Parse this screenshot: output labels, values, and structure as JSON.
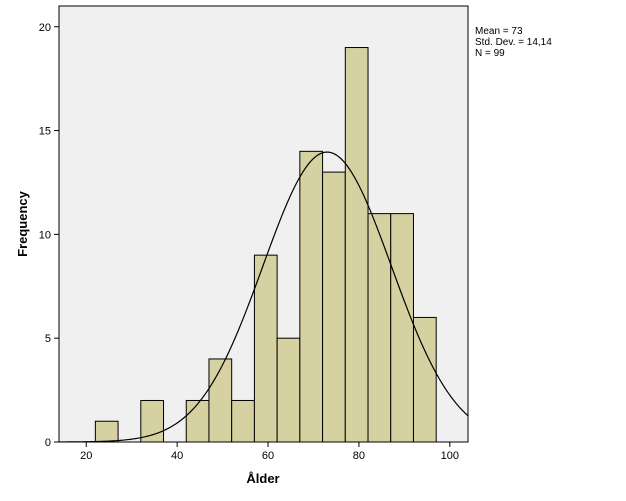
{
  "chart_data": {
    "type": "bar",
    "subtype": "histogram",
    "xlabel": "Ålder",
    "ylabel": "Frequency",
    "xlim": [
      14,
      104
    ],
    "ylim": [
      0,
      21
    ],
    "xticks": [
      20,
      40,
      60,
      80,
      100
    ],
    "yticks": [
      0,
      5,
      10,
      15,
      20
    ],
    "bin_width": 5,
    "bins": [
      {
        "start": 22,
        "end": 27,
        "count": 1
      },
      {
        "start": 27,
        "end": 32,
        "count": 0
      },
      {
        "start": 32,
        "end": 37,
        "count": 2
      },
      {
        "start": 37,
        "end": 42,
        "count": 0
      },
      {
        "start": 42,
        "end": 47,
        "count": 2
      },
      {
        "start": 47,
        "end": 52,
        "count": 4
      },
      {
        "start": 52,
        "end": 57,
        "count": 2
      },
      {
        "start": 57,
        "end": 62,
        "count": 9
      },
      {
        "start": 62,
        "end": 67,
        "count": 5
      },
      {
        "start": 67,
        "end": 72,
        "count": 14
      },
      {
        "start": 72,
        "end": 77,
        "count": 13
      },
      {
        "start": 77,
        "end": 82,
        "count": 19
      },
      {
        "start": 82,
        "end": 87,
        "count": 11
      },
      {
        "start": 87,
        "end": 92,
        "count": 11
      },
      {
        "start": 92,
        "end": 97,
        "count": 6
      }
    ],
    "normal_curve": {
      "mean": 73,
      "sd": 14.14,
      "n": 99
    },
    "grid": false,
    "colors": {
      "bar_fill": "#d6d1a1",
      "bar_stroke": "#000000",
      "plot_bg": "#f0f0f0",
      "curve": "#000000"
    }
  },
  "stats": {
    "mean": "Mean = 73",
    "std": "Std. Dev. = 14,14",
    "n": "N = 99"
  }
}
